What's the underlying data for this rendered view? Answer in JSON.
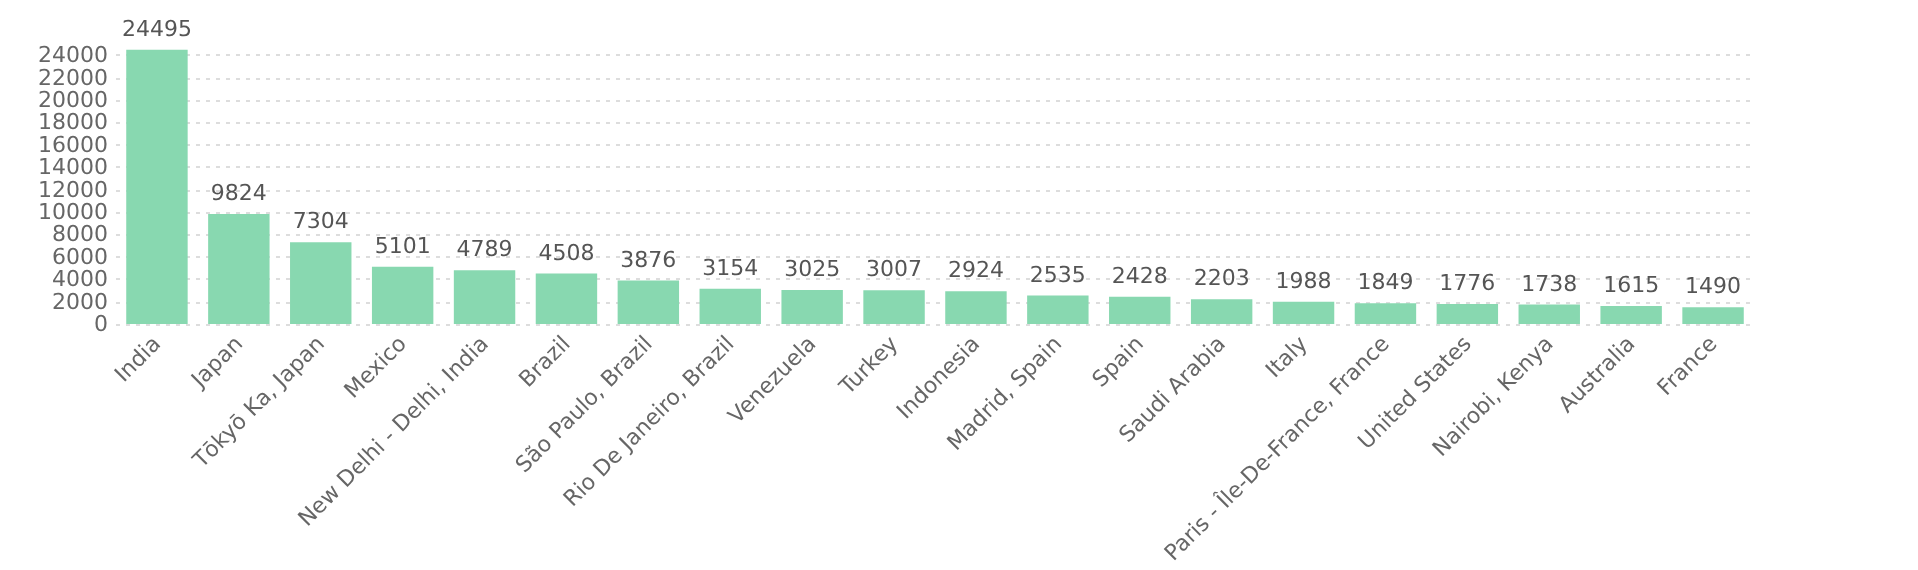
{
  "chart_data": {
    "type": "bar",
    "categories": [
      "India",
      "Japan",
      "Tōkyō Ka, Japan",
      "Mexico",
      "New Delhi - Delhi, India",
      "Brazil",
      "São Paulo, Brazil",
      "Rio De Janeiro, Brazil",
      "Venezuela",
      "Turkey",
      "Indonesia",
      "Madrid, Spain",
      "Spain",
      "Saudi Arabia",
      "Italy",
      "Paris - Île-De-France, France",
      "United States",
      "Nairobi, Kenya",
      "Australia",
      "France"
    ],
    "values": [
      24495,
      9824,
      7304,
      5101,
      4789,
      4508,
      3876,
      3154,
      3025,
      3007,
      2924,
      2535,
      2428,
      2203,
      1988,
      1849,
      1776,
      1738,
      1615,
      1490
    ],
    "color": "#88d8b0",
    "ylim": [
      0,
      25000
    ],
    "yticks": [
      0,
      2000,
      4000,
      6000,
      8000,
      10000,
      12000,
      14000,
      16000,
      18000,
      20000,
      22000,
      24000
    ],
    "grid": "y",
    "data_labels": true
  }
}
